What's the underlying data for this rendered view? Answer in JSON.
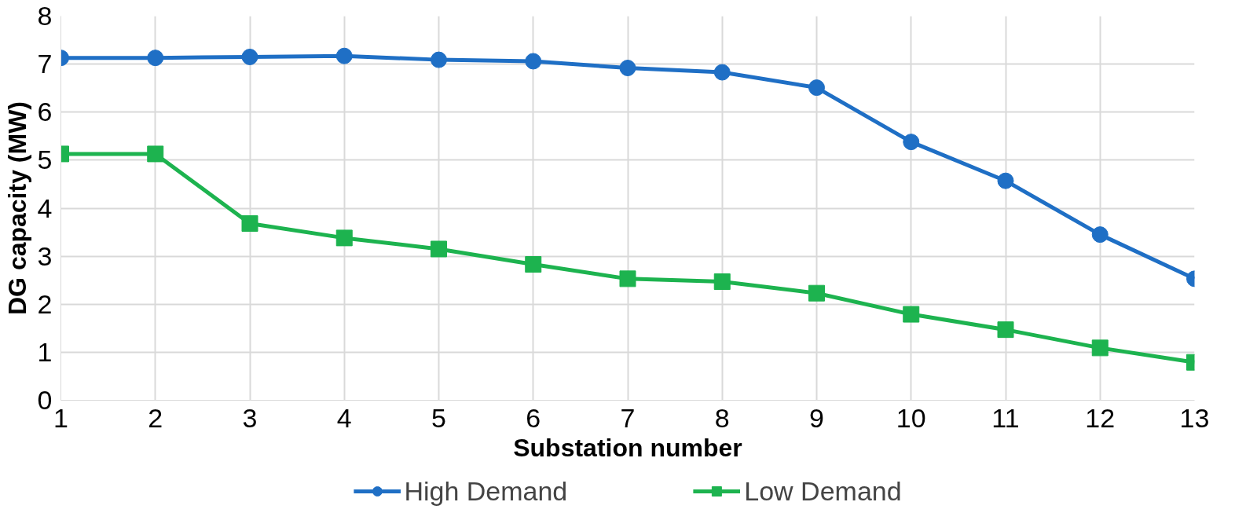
{
  "chart_data": {
    "type": "line",
    "xlabel": "Substation number",
    "ylabel": "DG capacity (MW)",
    "x": [
      1,
      2,
      3,
      4,
      5,
      6,
      7,
      8,
      9,
      10,
      11,
      12,
      13
    ],
    "xlim": [
      1,
      13
    ],
    "xticks": [
      1,
      2,
      3,
      4,
      5,
      6,
      7,
      8,
      9,
      10,
      11,
      12,
      13
    ],
    "ylim": [
      0,
      8
    ],
    "yticks": [
      0,
      1,
      2,
      3,
      4,
      5,
      6,
      7,
      8
    ],
    "grid": true,
    "legend": "bottom",
    "series": [
      {
        "name": "High Demand",
        "color": "#1f6fc5",
        "marker": "circle",
        "values": [
          7.13,
          7.13,
          7.15,
          7.17,
          7.09,
          7.06,
          6.92,
          6.83,
          6.51,
          5.38,
          4.57,
          3.45,
          2.53
        ]
      },
      {
        "name": "Low Demand",
        "color": "#1db34f",
        "marker": "square",
        "values": [
          5.13,
          5.13,
          3.68,
          3.38,
          3.15,
          2.83,
          2.53,
          2.47,
          2.23,
          1.79,
          1.47,
          1.09,
          0.79
        ]
      }
    ]
  }
}
